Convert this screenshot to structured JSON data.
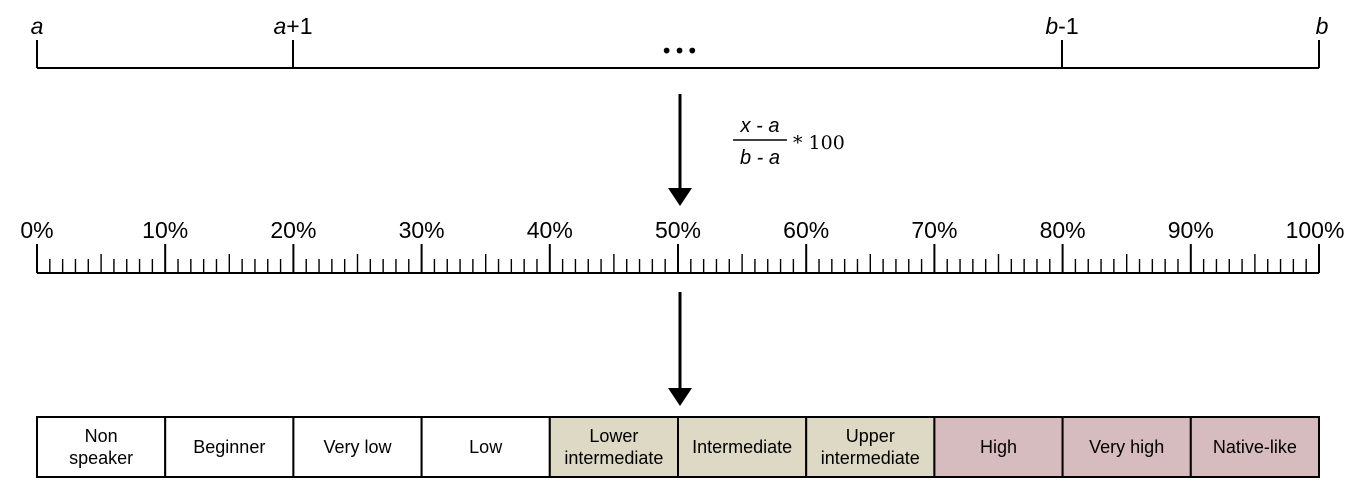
{
  "top_scale": {
    "labels": [
      {
        "var": "a",
        "suffix": ""
      },
      {
        "var": "a",
        "suffix": "+1"
      },
      {
        "var": "b",
        "suffix": "-1"
      },
      {
        "var": "b",
        "suffix": ""
      }
    ],
    "ellipsis": "•••"
  },
  "formula": {
    "numerator": "x - a",
    "denominator": "b - a",
    "multiplier": "* 100"
  },
  "percent_scale": {
    "labels": [
      "0%",
      "10%",
      "20%",
      "30%",
      "40%",
      "50%",
      "60%",
      "70%",
      "80%",
      "90%",
      "100%"
    ],
    "minor_ticks_per_interval": 10
  },
  "levels": [
    {
      "lines": [
        "Non",
        "speaker"
      ],
      "color": "#ffffff"
    },
    {
      "lines": [
        "Beginner"
      ],
      "color": "#ffffff"
    },
    {
      "lines": [
        "Very low"
      ],
      "color": "#ffffff"
    },
    {
      "lines": [
        "Low"
      ],
      "color": "#ffffff"
    },
    {
      "lines": [
        "Lower",
        "intermediate"
      ],
      "color": "#ddd9c4"
    },
    {
      "lines": [
        "Intermediate"
      ],
      "color": "#ddd9c4"
    },
    {
      "lines": [
        "Upper",
        "intermediate"
      ],
      "color": "#ddd9c4"
    },
    {
      "lines": [
        "High"
      ],
      "color": "#d7bcbf"
    },
    {
      "lines": [
        "Very high"
      ],
      "color": "#d7bcbf"
    },
    {
      "lines": [
        "Native-like"
      ],
      "color": "#d7bcbf"
    }
  ]
}
